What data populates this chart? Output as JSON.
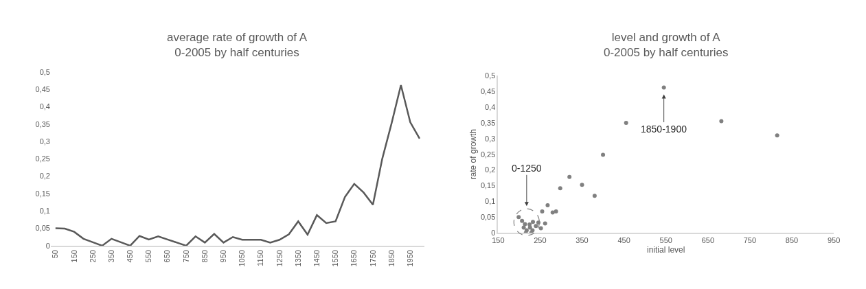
{
  "chart_data": [
    {
      "type": "line",
      "title": "average rate of growth of A\n0-2005 by half centuries",
      "categories": [
        "50",
        null,
        "150",
        null,
        "250",
        null,
        "350",
        null,
        "450",
        null,
        "550",
        null,
        "650",
        null,
        "750",
        null,
        "850",
        null,
        "950",
        null,
        "1050",
        null,
        "1150",
        null,
        "1250",
        null,
        "1350",
        null,
        "1450",
        null,
        "1550",
        null,
        "1650",
        null,
        "1750",
        null,
        "1850",
        null,
        "1950",
        null
      ],
      "series": [
        {
          "color": "#595959",
          "values": [
            0.05,
            0.049,
            0.04,
            0.02,
            0.01,
            0,
            0.02,
            0.01,
            0,
            0.028,
            0.018,
            0.027,
            0.018,
            0.009,
            0,
            0.027,
            0.009,
            0.034,
            0.009,
            0.025,
            0.017,
            0.017,
            0.017,
            0.009,
            0.017,
            0.033,
            0.07,
            0.032,
            0.088,
            0.065,
            0.07,
            0.14,
            0.178,
            0.153,
            0.118,
            0.25,
            0.352,
            0.462,
            0.355,
            0.308
          ]
        }
      ],
      "ylim": [
        0,
        0.5
      ],
      "yticks": [
        0,
        {
          "value": 0.05,
          "label": "0,05"
        },
        {
          "value": 0.1,
          "label": "0,1"
        },
        {
          "value": 0.15,
          "label": "0,15"
        },
        {
          "value": 0.2,
          "label": "0,2"
        },
        {
          "value": 0.25,
          "label": "0,25"
        },
        {
          "value": 0.3,
          "label": "0,3"
        },
        {
          "value": 0.35,
          "label": "0,35"
        },
        {
          "value": 0.4,
          "label": "0,4"
        },
        {
          "value": 0.45,
          "label": "0,45"
        },
        {
          "value": 0.5,
          "label": "0,5"
        }
      ],
      "marker": "none",
      "line_style": "solid"
    },
    {
      "type": "scatter",
      "title": "level and growth of A\n0-2005 by half centuries",
      "xlabel": "initial level",
      "ylabel": "rate of growth",
      "x": [
        545,
        455,
        682,
        815,
        400,
        320,
        298,
        350,
        380,
        268,
        255,
        280,
        288,
        262,
        199,
        207,
        214,
        225,
        233,
        246,
        211,
        226,
        240,
        252,
        218,
        232,
        216,
        229
      ],
      "series": [
        {
          "color": "#808080",
          "values": [
            0.462,
            0.35,
            0.355,
            0.31,
            0.248,
            0.178,
            0.142,
            0.153,
            0.118,
            0.088,
            0.068,
            0.065,
            0.068,
            0.03,
            0.05,
            0.038,
            0.028,
            0.027,
            0.035,
            0.033,
            0.017,
            0.017,
            0.022,
            0.015,
            0.008,
            0.008,
            0,
            0
          ]
        }
      ],
      "xlim": [
        150,
        950
      ],
      "xticks": [
        150,
        250,
        350,
        450,
        550,
        650,
        750,
        850,
        950
      ],
      "ylim": [
        0,
        0.5
      ],
      "yticks": [
        0,
        {
          "value": 0.05,
          "label": "0,05"
        },
        {
          "value": 0.1,
          "label": "0,1"
        },
        {
          "value": 0.15,
          "label": "0,15"
        },
        {
          "value": 0.2,
          "label": "0,2"
        },
        {
          "value": 0.25,
          "label": "0,25"
        },
        {
          "value": 0.3,
          "label": "0,3"
        },
        {
          "value": 0.35,
          "label": "0,35"
        },
        {
          "value": 0.4,
          "label": "0,4"
        },
        {
          "value": 0.45,
          "label": "0,45"
        },
        {
          "value": 0.5,
          "label": "0,5"
        }
      ],
      "annotations": [
        "0-1250",
        {
          "text": "1850-1900",
          "x": 545,
          "y": 0.462
        }
      ],
      "marker": "circle"
    }
  ]
}
